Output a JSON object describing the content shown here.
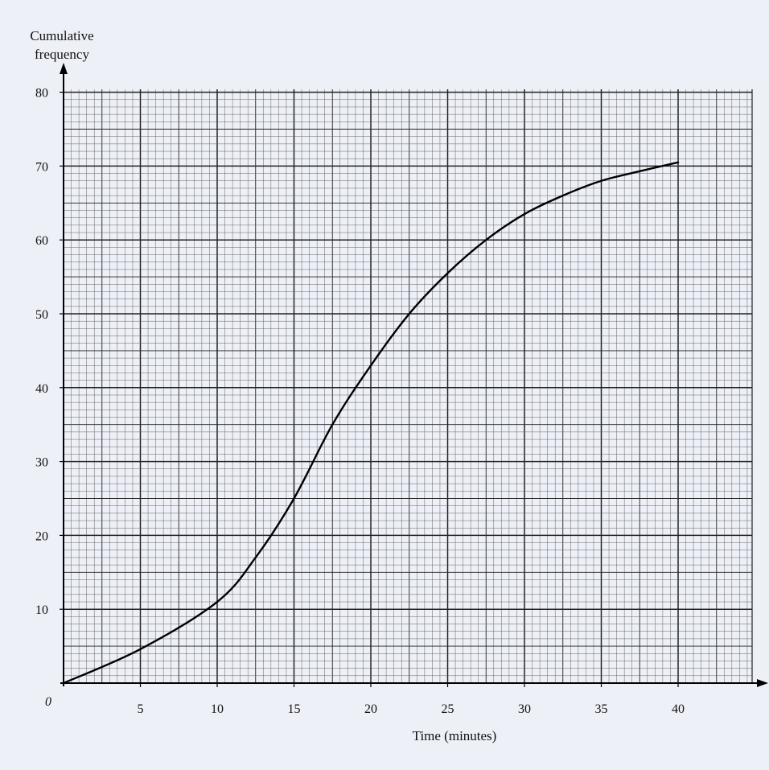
{
  "chart_data": {
    "type": "line",
    "title": "",
    "ylabel_line1": "Cumulative",
    "ylabel_line2": "frequency",
    "xlabel": "Time (minutes)",
    "origin_label": "0",
    "xlim": [
      0,
      45
    ],
    "ylim": [
      0,
      80
    ],
    "x_ticks": [
      5,
      10,
      15,
      20,
      25,
      30,
      35,
      40
    ],
    "y_ticks": [
      10,
      20,
      30,
      40,
      50,
      60,
      70,
      80
    ],
    "grid": true,
    "series": [
      {
        "x": [
          0,
          5,
          10,
          12.5,
          15,
          17.5,
          20,
          22.5,
          25,
          27.5,
          30,
          32.5,
          35,
          37.5,
          40
        ],
        "y": [
          0,
          4.6,
          11,
          17,
          25,
          35,
          43,
          50,
          55.5,
          60,
          63.5,
          66,
          68,
          69.3,
          70.5
        ]
      }
    ],
    "colors": {
      "background": "#eef0f8",
      "grid_major": "#222222",
      "grid_minor": "#555555",
      "curve": "#000000"
    }
  }
}
